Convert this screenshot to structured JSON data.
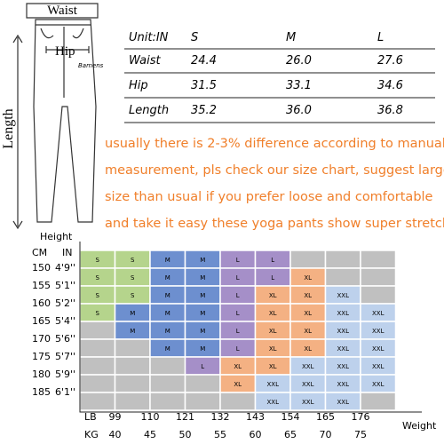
{
  "figure": {
    "waist_label": "Waist",
    "hip_label": "Hip",
    "length_label": "Length",
    "brand": "Bamens"
  },
  "size_table": {
    "unit": "Unit:IN",
    "sizes": [
      "S",
      "M",
      "L"
    ],
    "rows": [
      [
        "Waist",
        "24.4",
        "26.0",
        "27.6"
      ],
      [
        "Hip",
        "31.5",
        "33.1",
        "34.6"
      ],
      [
        "Length",
        "35.2",
        "36.0",
        "36.8"
      ]
    ]
  },
  "note": [
    "usually there is 2-3% difference according to manual",
    "measurement, pls check our size chart, suggest larger",
    "size than usual if you prefer loose and comfortable",
    "and take it easy these yoga pants show super stretchy"
  ],
  "size_chart": {
    "height_label": "Height",
    "cm_label": "CM",
    "in_label": "IN",
    "lb_label": "LB",
    "kg_label": "KG",
    "weight_label": "Weight",
    "cm": [
      "150",
      "155",
      "160",
      "165",
      "170",
      "175",
      "180",
      "185"
    ],
    "in": [
      "4'9''",
      "5'1''",
      "5'2''",
      "5'4''",
      "5'6''",
      "5'7''",
      "5'9''",
      "6'1''"
    ],
    "lb": [
      "99",
      "110",
      "121",
      "132",
      "143",
      "154",
      "165",
      "176"
    ],
    "kg": [
      "40",
      "45",
      "50",
      "55",
      "60",
      "65",
      "70",
      "75"
    ],
    "cells": [
      [
        "S",
        "S",
        "M",
        "M",
        "L",
        "L",
        null,
        null,
        null
      ],
      [
        "S",
        "S",
        "M",
        "M",
        "L",
        "L",
        "XL",
        null,
        null
      ],
      [
        "S",
        "S",
        "M",
        "M",
        "L",
        "XL",
        "XL",
        "XXL",
        null
      ],
      [
        "S",
        "M",
        "M",
        "M",
        "L",
        "XL",
        "XL",
        "XXL",
        "XXL"
      ],
      [
        null,
        "M",
        "M",
        "M",
        "L",
        "XL",
        "XL",
        "XXL",
        "XXL"
      ],
      [
        null,
        null,
        "M",
        "M",
        "L",
        "XL",
        "XL",
        "XXL",
        "XXL"
      ],
      [
        null,
        null,
        null,
        "L",
        "XL",
        "XL",
        "XXL",
        "XXL",
        "XXL"
      ],
      [
        null,
        null,
        null,
        null,
        "XL",
        "XXL",
        "XXL",
        "XXL",
        "XXL"
      ],
      [
        null,
        null,
        null,
        null,
        null,
        "XXL",
        "XXL",
        "XXL",
        null
      ]
    ]
  }
}
